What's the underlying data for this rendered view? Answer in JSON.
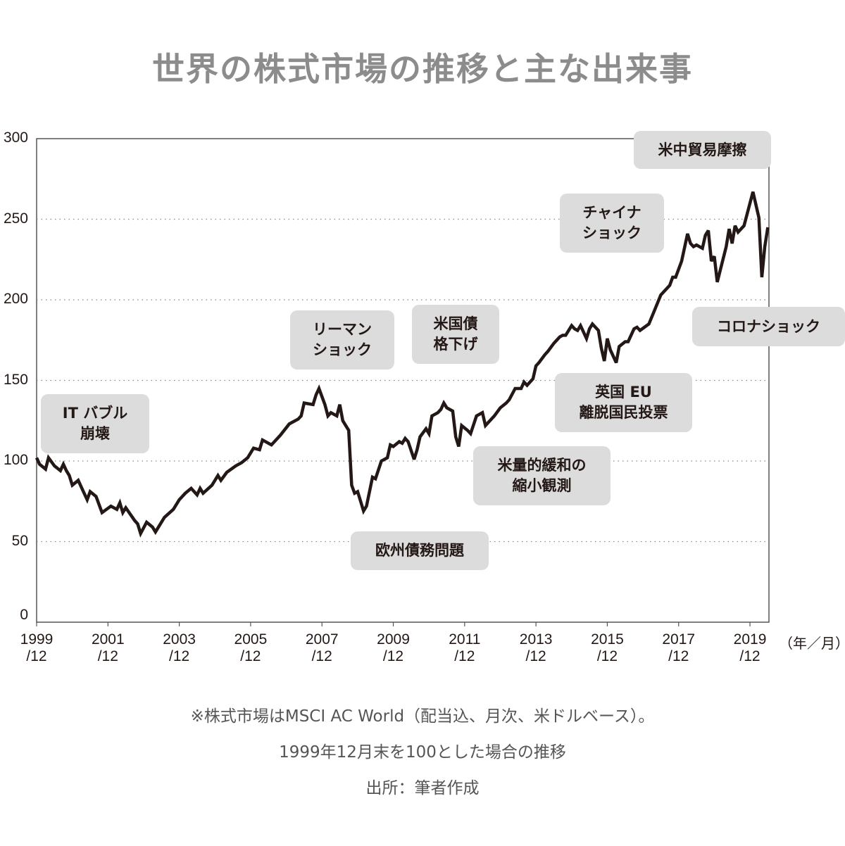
{
  "title": "世界の株式市場の推移と主な出来事",
  "chart_data": {
    "type": "line",
    "title": "世界の株式市場の推移と主な出来事",
    "x_unit": "months since 1999/12",
    "xlabel": "（年／月）",
    "ylabel": "",
    "ylim": [
      0,
      300
    ],
    "yticks": [
      "0",
      "50",
      "100",
      "150",
      "200",
      "250",
      "300"
    ],
    "xticks": [
      {
        "line1": "1999",
        "line2": "/12",
        "m": 0
      },
      {
        "line1": "2001",
        "line2": "/12",
        "m": 24
      },
      {
        "line1": "2003",
        "line2": "/12",
        "m": 48
      },
      {
        "line1": "2005",
        "line2": "/12",
        "m": 72
      },
      {
        "line1": "2007",
        "line2": "/12",
        "m": 96
      },
      {
        "line1": "2009",
        "line2": "/12",
        "m": 120
      },
      {
        "line1": "2011",
        "line2": "/12",
        "m": 144
      },
      {
        "line1": "2013",
        "line2": "/12",
        "m": 168
      },
      {
        "line1": "2015",
        "line2": "/12",
        "m": 192
      },
      {
        "line1": "2017",
        "line2": "/12",
        "m": 216
      },
      {
        "line1": "2019",
        "line2": "/12",
        "m": 240
      }
    ],
    "grid": "dotted horizontal",
    "series": [
      {
        "name": "MSCI AC World",
        "color": "#231815",
        "points": [
          [
            0,
            102
          ],
          [
            1,
            98
          ],
          [
            3,
            95
          ],
          [
            4,
            102
          ],
          [
            6,
            97
          ],
          [
            8,
            94
          ],
          [
            9,
            98
          ],
          [
            10,
            94
          ],
          [
            11,
            91
          ],
          [
            12,
            85
          ],
          [
            14,
            88
          ],
          [
            16,
            80
          ],
          [
            17,
            76
          ],
          [
            18,
            81
          ],
          [
            20,
            78
          ],
          [
            22,
            68
          ],
          [
            25,
            72
          ],
          [
            27,
            70
          ],
          [
            28,
            74
          ],
          [
            29,
            68
          ],
          [
            30,
            71
          ],
          [
            33,
            63
          ],
          [
            34,
            61
          ],
          [
            35,
            55
          ],
          [
            37,
            62
          ],
          [
            39,
            59
          ],
          [
            40,
            56
          ],
          [
            43,
            65
          ],
          [
            46,
            70
          ],
          [
            48,
            76
          ],
          [
            50,
            80
          ],
          [
            52,
            83
          ],
          [
            54,
            79
          ],
          [
            55,
            83
          ],
          [
            56,
            80
          ],
          [
            59,
            85
          ],
          [
            61,
            91
          ],
          [
            62,
            88
          ],
          [
            64,
            93
          ],
          [
            67,
            97
          ],
          [
            69,
            99
          ],
          [
            71,
            102
          ],
          [
            73,
            108
          ],
          [
            75,
            107
          ],
          [
            76,
            113
          ],
          [
            79,
            110
          ],
          [
            82,
            116
          ],
          [
            85,
            123
          ],
          [
            88,
            126
          ],
          [
            89,
            128
          ],
          [
            90,
            136
          ],
          [
            93,
            135
          ],
          [
            94,
            141
          ],
          [
            95,
            145
          ],
          [
            97,
            135
          ],
          [
            98,
            128
          ],
          [
            99,
            130
          ],
          [
            101,
            128
          ],
          [
            102,
            135
          ],
          [
            103,
            125
          ],
          [
            105,
            119
          ],
          [
            106,
            85
          ],
          [
            107,
            80
          ],
          [
            108,
            81
          ],
          [
            110,
            69
          ],
          [
            111,
            72
          ],
          [
            113,
            90
          ],
          [
            114,
            89
          ],
          [
            116,
            100
          ],
          [
            118,
            102
          ],
          [
            119,
            110
          ],
          [
            120,
            109
          ],
          [
            122,
            112
          ],
          [
            123,
            111
          ],
          [
            124,
            114
          ],
          [
            125,
            112
          ],
          [
            127,
            101
          ],
          [
            128,
            107
          ],
          [
            129,
            115
          ],
          [
            131,
            120
          ],
          [
            132,
            117
          ],
          [
            133,
            128
          ],
          [
            135,
            130
          ],
          [
            136,
            132
          ],
          [
            137,
            136
          ],
          [
            138,
            133
          ],
          [
            140,
            131
          ],
          [
            141,
            115
          ],
          [
            142,
            109
          ],
          [
            143,
            122
          ],
          [
            145,
            119
          ],
          [
            146,
            117
          ],
          [
            148,
            128
          ],
          [
            150,
            130
          ],
          [
            151,
            122
          ],
          [
            154,
            128
          ],
          [
            156,
            133
          ],
          [
            158,
            136
          ],
          [
            159,
            138
          ],
          [
            161,
            145
          ],
          [
            163,
            145
          ],
          [
            164,
            149
          ],
          [
            165,
            147
          ],
          [
            167,
            151
          ],
          [
            168,
            159
          ],
          [
            169,
            161
          ],
          [
            171,
            166
          ],
          [
            172,
            168
          ],
          [
            174,
            173
          ],
          [
            176,
            177
          ],
          [
            177,
            178
          ],
          [
            178,
            178
          ],
          [
            180,
            184
          ],
          [
            181,
            182
          ],
          [
            182,
            181
          ],
          [
            183,
            184
          ],
          [
            185,
            176
          ],
          [
            186,
            182
          ],
          [
            187,
            185
          ],
          [
            189,
            181
          ],
          [
            190,
            170
          ],
          [
            191,
            162
          ],
          [
            192,
            176
          ],
          [
            193,
            169
          ],
          [
            195,
            161
          ],
          [
            196,
            171
          ],
          [
            198,
            174
          ],
          [
            199,
            174
          ],
          [
            201,
            182
          ],
          [
            202,
            183
          ],
          [
            203,
            181
          ],
          [
            206,
            185
          ],
          [
            208,
            194
          ],
          [
            210,
            203
          ],
          [
            213,
            209
          ],
          [
            214,
            214
          ],
          [
            215,
            214
          ],
          [
            217,
            224
          ],
          [
            219,
            241
          ],
          [
            220,
            235
          ],
          [
            221,
            233
          ],
          [
            222,
            234
          ],
          [
            224,
            232
          ],
          [
            225,
            240
          ],
          [
            226,
            243
          ],
          [
            227,
            224
          ],
          [
            228,
            227
          ],
          [
            229,
            211
          ],
          [
            232,
            233
          ],
          [
            233,
            244
          ],
          [
            234,
            235
          ],
          [
            235,
            246
          ],
          [
            236,
            242
          ],
          [
            238,
            246
          ],
          [
            241,
            267
          ],
          [
            243,
            251
          ],
          [
            244,
            214
          ],
          [
            245,
            233
          ],
          [
            246,
            245
          ]
        ]
      }
    ],
    "annotations": [
      {
        "text": "IT バブル\n崩壊"
      },
      {
        "text": "リーマン\nショック"
      },
      {
        "text": "米国債\n格下げ"
      },
      {
        "text": "欧州債務問題"
      },
      {
        "text": "米量的緩和の\n縮小観測"
      },
      {
        "text": "英国 EU\n離脱国民投票"
      },
      {
        "text": "チャイナ\nショック"
      },
      {
        "text": "米中貿易摩擦"
      },
      {
        "text": "コロナショック"
      }
    ]
  },
  "footnotes": [
    "※株式市場はMSCI AC World（配当込、月次、米ドルベース）。",
    "1999年12月末を100とした場合の推移",
    "出所：筆者作成"
  ]
}
